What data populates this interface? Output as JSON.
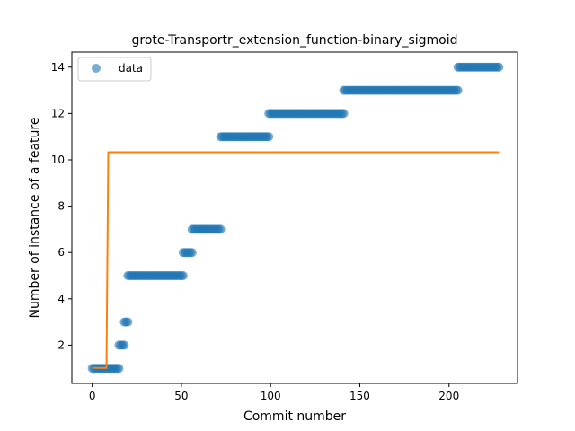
{
  "chart_data": {
    "type": "scatter",
    "title": "grote-Transportr_extension_function-binary_sigmoid",
    "xlabel": "Commit number",
    "ylabel": "Number of instance of a feature",
    "xlim": [
      -11.4,
      238.4
    ],
    "ylim": [
      0.35,
      14.65
    ],
    "xticks": [
      0,
      50,
      100,
      150,
      200
    ],
    "yticks": [
      2,
      4,
      6,
      8,
      10,
      12,
      14
    ],
    "grid": false,
    "legend": {
      "position": "upper-left",
      "entries": [
        {
          "label": "data",
          "marker": "circle",
          "color": "#1f77b4"
        }
      ]
    },
    "series": [
      {
        "name": "data",
        "kind": "scatter",
        "color": "#1f77b4",
        "alpha": 0.6,
        "segments": [
          {
            "x_start": 0,
            "x_end": 15,
            "y": 1
          },
          {
            "x_start": 15,
            "x_end": 18,
            "y": 2
          },
          {
            "x_start": 18,
            "x_end": 20,
            "y": 3
          },
          {
            "x_start": 20,
            "x_end": 51,
            "y": 5
          },
          {
            "x_start": 51,
            "x_end": 56,
            "y": 6
          },
          {
            "x_start": 56,
            "x_end": 72,
            "y": 7
          },
          {
            "x_start": 72,
            "x_end": 99,
            "y": 11
          },
          {
            "x_start": 99,
            "x_end": 141,
            "y": 12
          },
          {
            "x_start": 141,
            "x_end": 205,
            "y": 13
          },
          {
            "x_start": 205,
            "x_end": 228,
            "y": 14
          }
        ]
      },
      {
        "kind": "line",
        "color": "#ff7f0e",
        "points": [
          [
            0,
            1.02
          ],
          [
            8,
            1.02
          ],
          [
            9,
            10.33
          ],
          [
            228,
            10.33
          ]
        ]
      }
    ]
  }
}
